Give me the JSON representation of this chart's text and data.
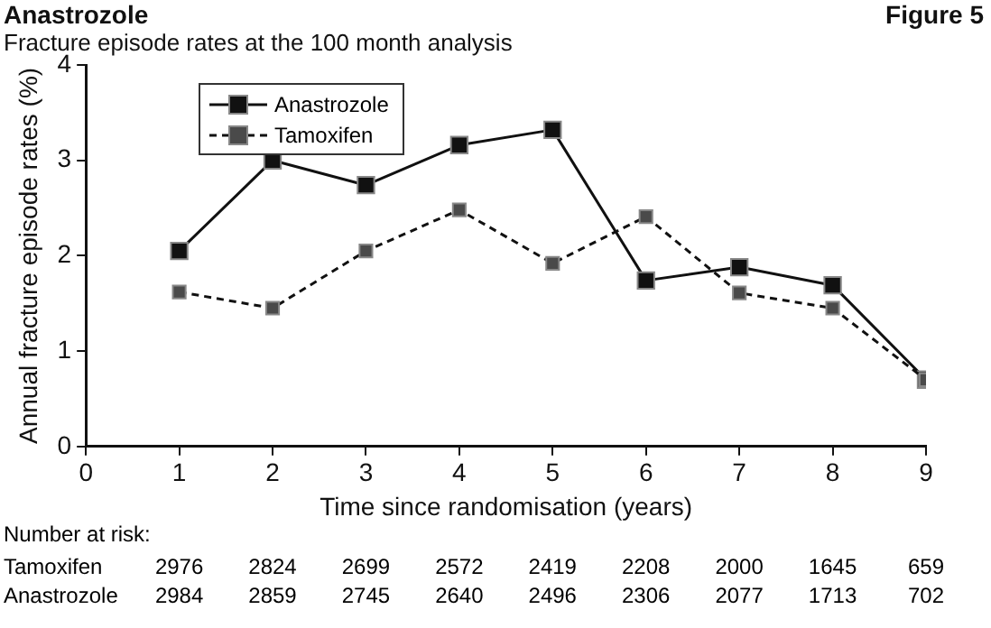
{
  "chart_data": {
    "type": "line",
    "title": "Anastrozole",
    "subtitle": "Fracture episode rates at the 100 month analysis",
    "xlabel": "Time since randomisation (years)",
    "ylabel": "Annual fracture episode rates (%)",
    "x": [
      1,
      2,
      3,
      4,
      5,
      6,
      7,
      8,
      9
    ],
    "series": [
      {
        "name": "Anastrozole",
        "color": "#111111",
        "line_style": "solid",
        "values": [
          2.05,
          3.0,
          2.74,
          3.16,
          3.32,
          1.74,
          1.88,
          1.69,
          0.7
        ]
      },
      {
        "name": "Tamoxifen",
        "color": "#4a4a4a",
        "line_style": "dashed",
        "values": [
          1.62,
          1.45,
          2.05,
          2.48,
          1.92,
          2.41,
          1.61,
          1.45,
          0.7
        ]
      }
    ],
    "xlim": [
      0,
      9
    ],
    "xticks": [
      0,
      1,
      2,
      3,
      4,
      5,
      6,
      7,
      8,
      9
    ],
    "ylim": [
      0,
      4
    ],
    "yticks": [
      0,
      1,
      2,
      3,
      4
    ],
    "grid": false,
    "legend": "top left",
    "marker": "square",
    "annotations": [
      "Figure 5",
      "Number at risk:",
      "Tamoxifen 2976 2824 2699 2572 2419 2208 2000 1645 659",
      "Anastrozole 2984 2859 2745 2640 2496 2306 2077 1713 702"
    ]
  }
}
